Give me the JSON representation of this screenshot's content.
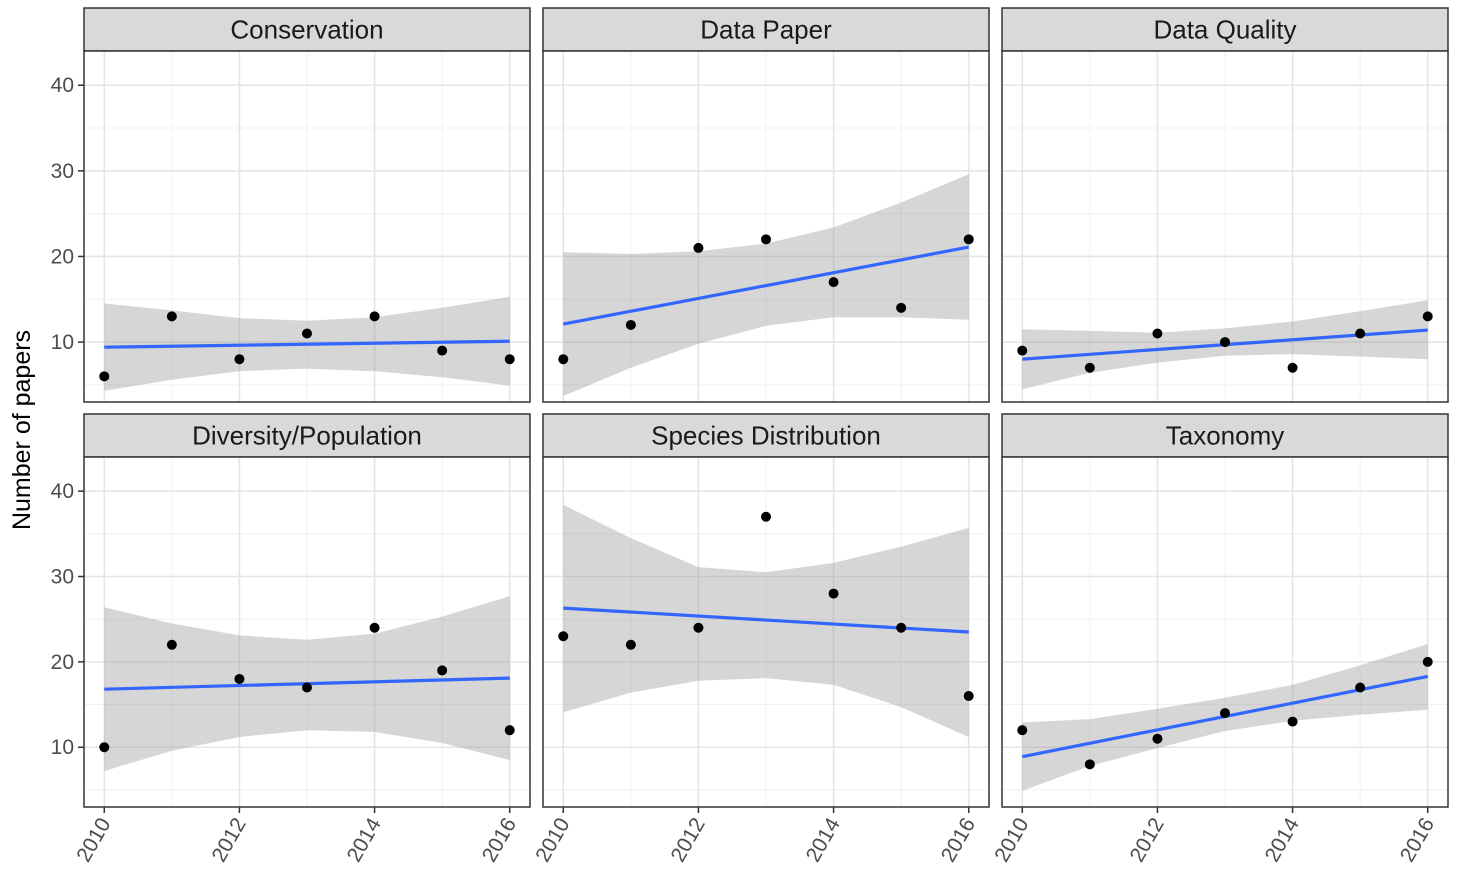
{
  "chart_data": {
    "type": "scatter",
    "layout": "facet-grid",
    "xlabel": "",
    "ylabel": "Number of papers",
    "ylim": [
      3,
      44
    ],
    "xlim": [
      2009.7,
      2016.3
    ],
    "y_ticks": [
      10,
      20,
      30,
      40
    ],
    "x_ticks": [
      2010,
      2012,
      2014,
      2016
    ],
    "x_tick_labels": [
      "2010",
      "2012",
      "2014",
      "2016"
    ],
    "x_tick_rotation_deg": 60,
    "grid": true,
    "point_color": "#000000",
    "fit_line_color": "#3366ff",
    "ci_band_color": "#999999",
    "strip_color": "#d9d9d9",
    "panels": [
      {
        "title": "Conservation",
        "x": [
          2010,
          2011,
          2012,
          2013,
          2014,
          2015,
          2016
        ],
        "y": [
          6,
          13,
          8,
          11,
          13,
          9,
          8
        ],
        "fit": [
          9.4,
          10.1
        ],
        "ci_lower": [
          4.3,
          5.6,
          6.6,
          6.9,
          6.6,
          5.9,
          4.9
        ],
        "ci_upper": [
          14.5,
          13.7,
          12.8,
          12.5,
          12.9,
          14.0,
          15.3
        ]
      },
      {
        "title": "Data Paper",
        "x": [
          2010,
          2011,
          2012,
          2013,
          2014,
          2015,
          2016
        ],
        "y": [
          8,
          12,
          21,
          22,
          17,
          14,
          22
        ],
        "fit": [
          12.1,
          21.1
        ],
        "ci_lower": [
          3.7,
          7.0,
          9.8,
          11.9,
          12.9,
          12.9,
          12.6
        ],
        "ci_upper": [
          20.5,
          20.3,
          20.6,
          21.5,
          23.4,
          26.3,
          29.6
        ]
      },
      {
        "title": "Data Quality",
        "x": [
          2010,
          2011,
          2012,
          2013,
          2014,
          2015,
          2016
        ],
        "y": [
          9,
          7,
          11,
          10,
          7,
          11,
          13
        ],
        "fit": [
          8.0,
          11.4
        ],
        "ci_lower": [
          4.5,
          6.4,
          7.6,
          8.4,
          8.6,
          8.3,
          8.0
        ],
        "ci_upper": [
          11.5,
          11.3,
          11.1,
          11.6,
          12.4,
          13.6,
          14.9
        ]
      },
      {
        "title": "Diversity/Population",
        "x": [
          2010,
          2011,
          2012,
          2013,
          2014,
          2015,
          2016
        ],
        "y": [
          10,
          22,
          18,
          17,
          24,
          19,
          12
        ],
        "fit": [
          16.8,
          18.1
        ],
        "ci_lower": [
          7.2,
          9.6,
          11.2,
          12.0,
          11.8,
          10.5,
          8.5
        ],
        "ci_upper": [
          26.4,
          24.5,
          23.1,
          22.6,
          23.3,
          25.3,
          27.7
        ]
      },
      {
        "title": "Species Distribution",
        "x": [
          2010,
          2011,
          2012,
          2013,
          2014,
          2015,
          2016
        ],
        "y": [
          23,
          22,
          24,
          37,
          28,
          24,
          16
        ],
        "fit": [
          26.3,
          23.5
        ],
        "ci_lower": [
          14.1,
          16.4,
          17.8,
          18.1,
          17.3,
          14.7,
          11.2
        ],
        "ci_upper": [
          38.4,
          34.5,
          31.1,
          30.5,
          31.6,
          33.5,
          35.7
        ]
      },
      {
        "title": "Taxonomy",
        "x": [
          2010,
          2011,
          2012,
          2013,
          2014,
          2015,
          2016
        ],
        "y": [
          12,
          8,
          11,
          14,
          13,
          17,
          20
        ],
        "fit": [
          8.9,
          18.3
        ],
        "ci_lower": [
          4.9,
          7.8,
          9.9,
          11.9,
          13.1,
          13.8,
          14.4
        ],
        "ci_upper": [
          12.9,
          13.3,
          14.5,
          15.8,
          17.3,
          19.6,
          22.1
        ]
      }
    ]
  }
}
